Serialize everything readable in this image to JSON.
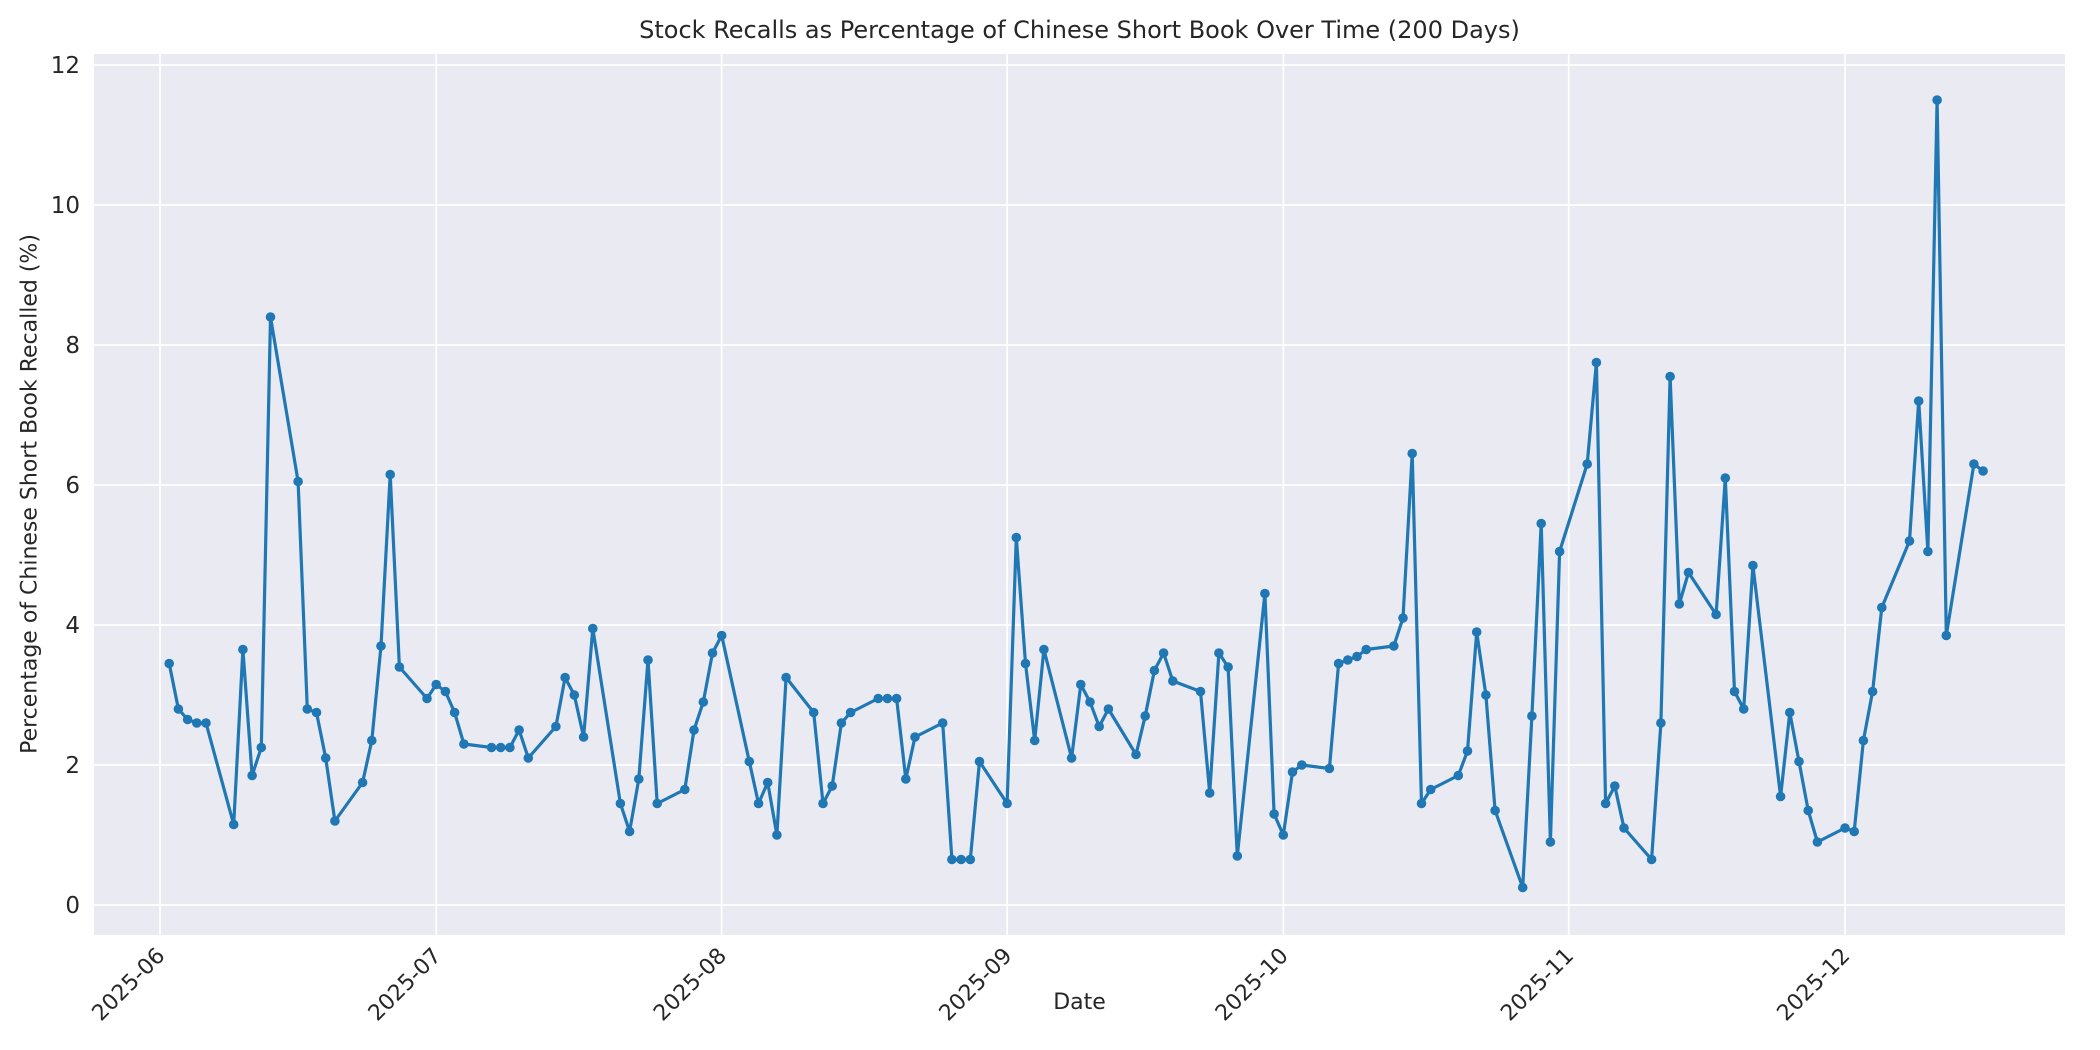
{
  "chart_data": {
    "type": "line",
    "title": "Stock Recalls as Percentage of Chinese Short Book Over Time (200 Days)",
    "xlabel": "Date",
    "ylabel": "Percentage of Chinese Short Book Recalled (%)",
    "x_tick_labels": [
      "2025-06",
      "2025-07",
      "2025-08",
      "2025-09",
      "2025-10",
      "2025-11",
      "2025-12"
    ],
    "y_ticks": [
      0,
      2,
      4,
      6,
      8,
      10,
      12
    ],
    "ylim": [
      -0.45,
      12.15
    ],
    "grid": true,
    "legend": "none",
    "marker": "circle",
    "line_color": "#1f77b4",
    "plot_bg_color": "#eaeaf2",
    "grid_color": "#ffffff",
    "text_color": "#262626",
    "start_date_estimate": "2025-06-02",
    "frequency_estimate": "business-daily",
    "values": [
      3.45,
      2.8,
      2.65,
      2.6,
      2.6,
      1.15,
      3.65,
      1.85,
      2.25,
      8.4,
      6.05,
      2.8,
      2.75,
      2.1,
      1.2,
      1.75,
      2.35,
      3.7,
      6.15,
      3.4,
      2.95,
      3.15,
      3.05,
      2.75,
      2.3,
      2.25,
      2.25,
      2.25,
      2.5,
      2.1,
      2.55,
      3.25,
      3.0,
      2.4,
      3.95,
      1.45,
      1.05,
      1.8,
      3.5,
      1.45,
      1.65,
      2.5,
      2.9,
      3.6,
      3.85,
      2.05,
      1.45,
      1.75,
      1.0,
      3.25,
      2.75,
      1.45,
      1.7,
      2.6,
      2.75,
      2.95,
      2.95,
      2.95,
      1.8,
      2.4,
      2.6,
      0.65,
      0.65,
      0.65,
      2.05,
      1.45,
      5.25,
      3.45,
      2.35,
      3.65,
      2.1,
      3.15,
      2.9,
      2.55,
      2.8,
      2.15,
      2.7,
      3.35,
      3.6,
      3.2,
      3.05,
      1.6,
      3.6,
      3.4,
      0.7,
      4.45,
      1.3,
      1.0,
      1.9,
      2.0,
      1.95,
      3.45,
      3.5,
      3.55,
      3.65,
      3.7,
      4.1,
      6.45,
      1.45,
      1.65,
      1.85,
      2.2,
      3.9,
      3.0,
      1.35,
      0.25,
      2.7,
      5.45,
      0.9,
      5.05,
      6.3,
      7.75,
      1.45,
      1.7,
      1.1,
      0.65,
      2.6,
      7.55,
      4.3,
      4.75,
      4.15,
      6.1,
      3.05,
      2.8,
      4.85,
      1.55,
      2.75,
      2.05,
      1.35,
      0.9,
      1.1,
      1.05,
      2.35,
      3.05,
      4.25,
      5.2,
      7.2,
      5.05,
      11.5,
      3.85,
      6.3,
      6.2
    ]
  }
}
